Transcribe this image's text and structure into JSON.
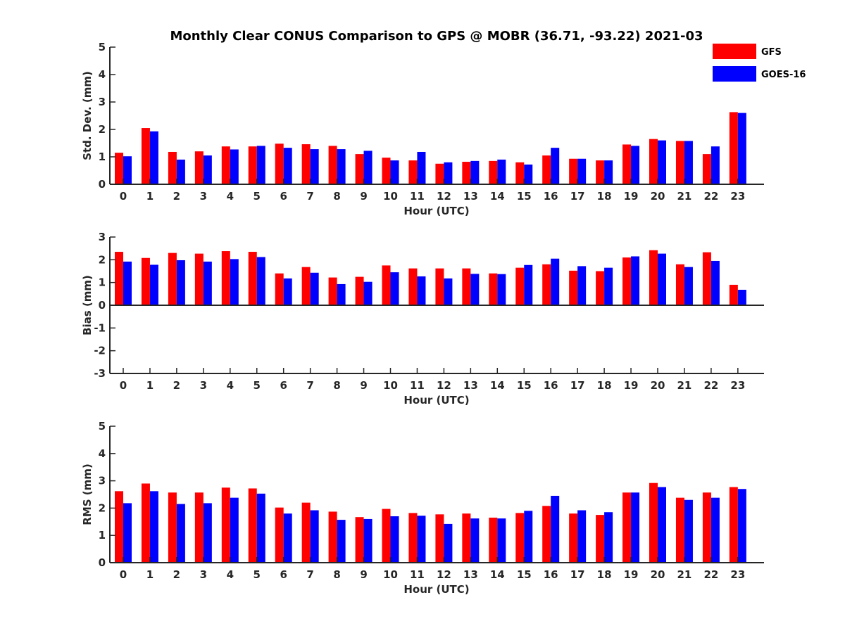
{
  "title": "Monthly Clear CONUS Comparison to GPS @ MOBR (36.71, -93.22) 2021-03",
  "legend": [
    {
      "name": "GFS",
      "color": "#ff0000"
    },
    {
      "name": "GOES-16",
      "color": "#0000ff"
    }
  ],
  "chart_data": [
    {
      "type": "bar",
      "xlabel": "Hour (UTC)",
      "ylabel": "Std. Dev. (mm)",
      "ylim": [
        0,
        5
      ],
      "yticks": [
        "0",
        "1",
        "2",
        "3",
        "4",
        "5"
      ],
      "categories": [
        "0",
        "1",
        "2",
        "3",
        "4",
        "5",
        "6",
        "7",
        "8",
        "9",
        "10",
        "11",
        "12",
        "13",
        "14",
        "15",
        "16",
        "17",
        "18",
        "19",
        "20",
        "21",
        "22",
        "23"
      ],
      "series": [
        {
          "name": "GFS",
          "color": "#ff0000",
          "values": [
            1.15,
            2.05,
            1.18,
            1.2,
            1.38,
            1.38,
            1.48,
            1.46,
            1.4,
            1.1,
            0.97,
            0.87,
            0.75,
            0.82,
            0.85,
            0.8,
            1.05,
            0.93,
            0.87,
            1.45,
            1.65,
            1.58,
            1.1,
            2.63
          ]
        },
        {
          "name": "GOES-16",
          "color": "#0000ff",
          "values": [
            1.02,
            1.93,
            0.9,
            1.05,
            1.27,
            1.4,
            1.33,
            1.28,
            1.28,
            1.22,
            0.87,
            1.18,
            0.8,
            0.85,
            0.9,
            0.72,
            1.33,
            0.93,
            0.87,
            1.4,
            1.6,
            1.58,
            1.38,
            2.6
          ]
        }
      ]
    },
    {
      "type": "bar",
      "xlabel": "Hour (UTC)",
      "ylabel": "Bias (mm)",
      "ylim": [
        -3,
        3
      ],
      "yticks": [
        "-3",
        "-2",
        "-1",
        "0",
        "1",
        "2",
        "3"
      ],
      "categories": [
        "0",
        "1",
        "2",
        "3",
        "4",
        "5",
        "6",
        "7",
        "8",
        "9",
        "10",
        "11",
        "12",
        "13",
        "14",
        "15",
        "16",
        "17",
        "18",
        "19",
        "20",
        "21",
        "22",
        "23"
      ],
      "series": [
        {
          "name": "GFS",
          "color": "#ff0000",
          "values": [
            2.35,
            2.08,
            2.3,
            2.27,
            2.38,
            2.35,
            1.4,
            1.68,
            1.22,
            1.25,
            1.75,
            1.62,
            1.62,
            1.62,
            1.4,
            1.65,
            1.8,
            1.52,
            1.5,
            2.1,
            2.42,
            1.8,
            2.33,
            0.9
          ]
        },
        {
          "name": "GOES-16",
          "color": "#0000ff",
          "values": [
            1.92,
            1.78,
            1.98,
            1.92,
            2.03,
            2.12,
            1.18,
            1.43,
            0.93,
            1.03,
            1.45,
            1.27,
            1.18,
            1.38,
            1.37,
            1.77,
            2.05,
            1.72,
            1.65,
            2.15,
            2.27,
            1.68,
            1.95,
            0.68
          ]
        }
      ]
    },
    {
      "type": "bar",
      "xlabel": "Hour (UTC)",
      "ylabel": "RMS (mm)",
      "ylim": [
        0,
        5
      ],
      "yticks": [
        "0",
        "1",
        "2",
        "3",
        "4",
        "5"
      ],
      "categories": [
        "0",
        "1",
        "2",
        "3",
        "4",
        "5",
        "6",
        "7",
        "8",
        "9",
        "10",
        "11",
        "12",
        "13",
        "14",
        "15",
        "16",
        "17",
        "18",
        "19",
        "20",
        "21",
        "22",
        "23"
      ],
      "series": [
        {
          "name": "GFS",
          "color": "#ff0000",
          "values": [
            2.62,
            2.9,
            2.57,
            2.57,
            2.75,
            2.72,
            2.02,
            2.2,
            1.87,
            1.67,
            1.97,
            1.82,
            1.77,
            1.8,
            1.65,
            1.82,
            2.08,
            1.8,
            1.75,
            2.57,
            2.92,
            2.38,
            2.57,
            2.77
          ]
        },
        {
          "name": "GOES-16",
          "color": "#0000ff",
          "values": [
            2.18,
            2.62,
            2.15,
            2.18,
            2.38,
            2.53,
            1.8,
            1.92,
            1.57,
            1.6,
            1.7,
            1.72,
            1.42,
            1.62,
            1.62,
            1.9,
            2.45,
            1.92,
            1.85,
            2.57,
            2.77,
            2.3,
            2.38,
            2.7
          ]
        }
      ]
    }
  ]
}
